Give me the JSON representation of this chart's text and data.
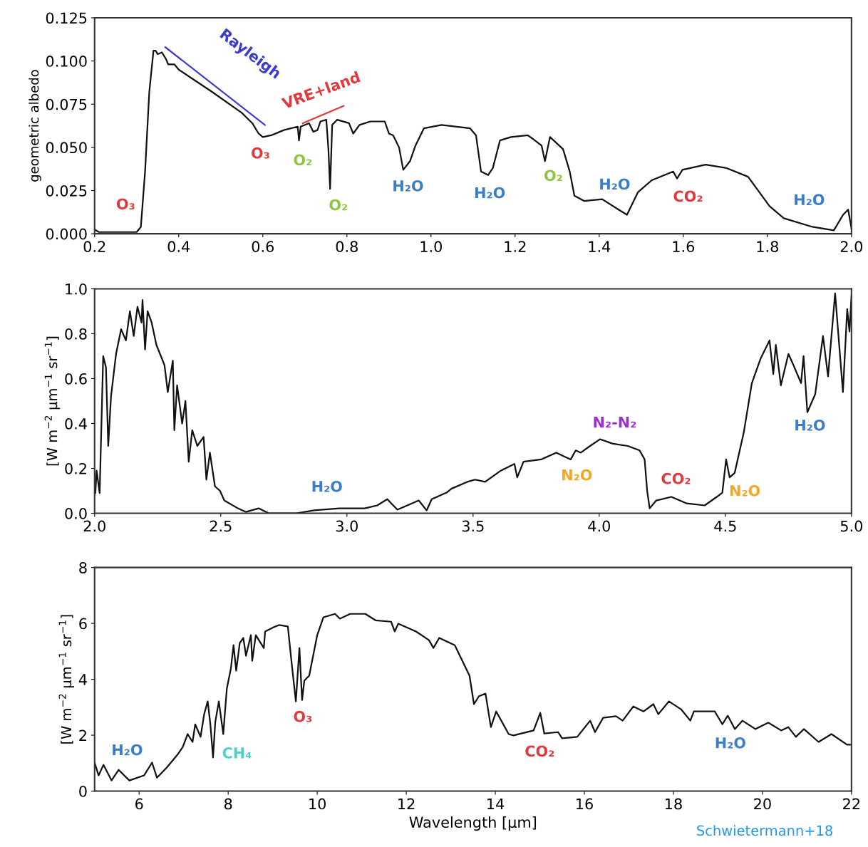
{
  "chart_data": [
    {
      "type": "line",
      "ylabel": "geometric albedo",
      "xlim": [
        0.2,
        2.0
      ],
      "ylim": [
        0.0,
        0.125
      ],
      "xticks": [
        {
          "value": 0.2,
          "label": "0.2"
        },
        {
          "value": 0.4,
          "label": "0.4"
        },
        {
          "value": 0.6,
          "label": "0.6"
        },
        {
          "value": 0.8,
          "label": "0.8"
        },
        {
          "value": 1.0,
          "label": "1.0"
        },
        {
          "value": 1.2,
          "label": "1.2"
        },
        {
          "value": 1.4,
          "label": "1.4"
        },
        {
          "value": 1.6,
          "label": "1.6"
        },
        {
          "value": 1.8,
          "label": "1.8"
        },
        {
          "value": 2.0,
          "label": "2.0"
        }
      ],
      "yticks": [
        {
          "value": 0.0,
          "label": "0.000"
        },
        {
          "value": 0.025,
          "label": "0.025"
        },
        {
          "value": 0.05,
          "label": "0.050"
        },
        {
          "value": 0.075,
          "label": "0.075"
        },
        {
          "value": 0.1,
          "label": "0.100"
        },
        {
          "value": 0.125,
          "label": "0.125"
        }
      ],
      "grid": false,
      "series": [
        {
          "color": "#111111",
          "x": [
            0.2,
            0.21,
            0.23,
            0.3,
            0.31,
            0.32,
            0.33,
            0.34,
            0.345,
            0.35,
            0.36,
            0.37,
            0.375,
            0.39,
            0.4,
            0.48,
            0.55,
            0.575,
            0.59,
            0.6,
            0.62,
            0.65,
            0.683,
            0.686,
            0.69,
            0.71,
            0.72,
            0.73,
            0.737,
            0.751,
            0.756,
            0.76,
            0.765,
            0.777,
            0.805,
            0.815,
            0.83,
            0.856,
            0.89,
            0.9,
            0.91,
            0.924,
            0.934,
            0.95,
            0.963,
            0.983,
            1.025,
            1.093,
            1.107,
            1.119,
            1.136,
            1.147,
            1.164,
            1.19,
            1.23,
            1.242,
            1.263,
            1.271,
            1.283,
            1.314,
            1.33,
            1.341,
            1.364,
            1.407,
            1.446,
            1.466,
            1.492,
            1.525,
            1.576,
            1.585,
            1.598,
            1.653,
            1.703,
            1.754,
            1.805,
            1.839,
            1.907,
            1.958,
            1.98,
            1.992,
            2.0
          ],
          "values": [
            0.0025,
            0.001,
            0.001,
            0.001,
            0.004,
            0.036,
            0.082,
            0.106,
            0.106,
            0.104,
            0.105,
            0.101,
            0.098,
            0.098,
            0.095,
            0.082,
            0.07,
            0.064,
            0.058,
            0.056,
            0.057,
            0.06,
            0.062,
            0.054,
            0.062,
            0.064,
            0.059,
            0.06,
            0.065,
            0.066,
            0.049,
            0.026,
            0.063,
            0.066,
            0.064,
            0.058,
            0.063,
            0.065,
            0.065,
            0.058,
            0.057,
            0.05,
            0.037,
            0.042,
            0.051,
            0.061,
            0.063,
            0.061,
            0.057,
            0.036,
            0.034,
            0.038,
            0.054,
            0.056,
            0.057,
            0.055,
            0.051,
            0.042,
            0.056,
            0.049,
            0.036,
            0.022,
            0.019,
            0.02,
            0.014,
            0.011,
            0.024,
            0.031,
            0.036,
            0.032,
            0.037,
            0.04,
            0.038,
            0.033,
            0.016,
            0.009,
            0.004,
            0.002,
            0.011,
            0.014,
            0.003
          ]
        },
        {
          "color": "#3b3bd0",
          "x": [
            0.368,
            0.605
          ],
          "values": [
            0.108,
            0.063
          ]
        },
        {
          "color": "#e0393e",
          "x": [
            0.695,
            0.792
          ],
          "values": [
            0.064,
            0.074
          ]
        }
      ],
      "annotations": [
        "O₃",
        "Rayleigh",
        "VRE+land",
        "O₃",
        "O₂",
        "O₂",
        "H₂O",
        "H₂O",
        "O₂",
        "H₂O",
        "CO₂",
        "H₂O"
      ]
    },
    {
      "type": "line",
      "ylabel": "[W m$^{−2}$ μm$^{−1}$ sr$^{−1}$]",
      "xlim": [
        2.0,
        5.0
      ],
      "ylim": [
        0.0,
        1.0
      ],
      "xticks": [
        {
          "value": 2.0,
          "label": "2.0"
        },
        {
          "value": 2.5,
          "label": "2.5"
        },
        {
          "value": 3.0,
          "label": "3.0"
        },
        {
          "value": 3.5,
          "label": "3.5"
        },
        {
          "value": 4.0,
          "label": "4.0"
        },
        {
          "value": 4.5,
          "label": "4.5"
        },
        {
          "value": 5.0,
          "label": "5.0"
        }
      ],
      "yticks": [
        {
          "value": 0.0,
          "label": "0.0"
        },
        {
          "value": 0.2,
          "label": "0.2"
        },
        {
          "value": 0.4,
          "label": "0.4"
        },
        {
          "value": 0.6,
          "label": "0.6"
        },
        {
          "value": 0.8,
          "label": "0.8"
        },
        {
          "value": 1.0,
          "label": "1.0"
        }
      ],
      "grid": false,
      "series": [
        {
          "color": "#111111",
          "x": [
            2.003,
            2.008,
            2.02,
            2.034,
            2.045,
            2.054,
            2.065,
            2.085,
            2.105,
            2.124,
            2.14,
            2.155,
            2.17,
            2.186,
            2.19,
            2.2,
            2.21,
            2.226,
            2.245,
            2.277,
            2.29,
            2.31,
            2.316,
            2.327,
            2.347,
            2.36,
            2.373,
            2.387,
            2.407,
            2.432,
            2.443,
            2.457,
            2.477,
            2.497,
            2.514,
            2.568,
            2.6,
            2.65,
            2.69,
            2.8,
            2.87,
            2.97,
            3.07,
            3.12,
            3.16,
            3.2,
            3.285,
            3.316,
            3.336,
            3.395,
            3.415,
            3.477,
            3.508,
            3.548,
            3.61,
            3.664,
            3.675,
            3.7,
            3.77,
            3.83,
            3.867,
            3.887,
            3.907,
            3.927,
            3.964,
            4.003,
            4.054,
            4.113,
            4.16,
            4.18,
            4.19,
            4.2,
            4.226,
            4.286,
            4.347,
            4.418,
            4.466,
            4.488,
            4.503,
            4.517,
            4.537,
            4.573,
            4.605,
            4.64,
            4.675,
            4.69,
            4.7,
            4.72,
            4.75,
            4.77,
            4.8,
            4.81,
            4.825,
            4.856,
            4.887,
            4.907,
            4.935,
            4.966,
            4.983,
            4.992,
            5.0
          ],
          "values": [
            0.09,
            0.19,
            0.09,
            0.7,
            0.65,
            0.3,
            0.52,
            0.71,
            0.82,
            0.77,
            0.9,
            0.79,
            0.92,
            0.85,
            0.95,
            0.73,
            0.9,
            0.85,
            0.75,
            0.66,
            0.54,
            0.68,
            0.37,
            0.57,
            0.4,
            0.5,
            0.23,
            0.37,
            0.3,
            0.34,
            0.15,
            0.27,
            0.12,
            0.1,
            0.057,
            0.022,
            0.006,
            0.022,
            0.0,
            0.0,
            0.013,
            0.022,
            0.022,
            0.035,
            0.063,
            0.016,
            0.057,
            0.013,
            0.063,
            0.092,
            0.11,
            0.14,
            0.15,
            0.14,
            0.19,
            0.22,
            0.16,
            0.23,
            0.24,
            0.27,
            0.25,
            0.24,
            0.28,
            0.27,
            0.3,
            0.33,
            0.31,
            0.3,
            0.28,
            0.24,
            0.1,
            0.022,
            0.057,
            0.073,
            0.044,
            0.035,
            0.073,
            0.092,
            0.24,
            0.16,
            0.18,
            0.36,
            0.58,
            0.69,
            0.77,
            0.62,
            0.75,
            0.57,
            0.71,
            0.66,
            0.58,
            0.7,
            0.45,
            0.53,
            0.79,
            0.61,
            0.98,
            0.54,
            0.91,
            0.81,
            0.97
          ]
        }
      ],
      "annotations": [
        "H₂O",
        "N₂O",
        "N₂-N₂",
        "CO₂",
        "N₂O",
        "H₂O"
      ]
    },
    {
      "type": "line",
      "xlabel": "Wavelength [μm]",
      "ylabel": "[W m$^{−2}$ μm$^{−1}$ sr$^{−1}$]",
      "xlim": [
        5,
        22
      ],
      "ylim": [
        0,
        8
      ],
      "xticks": [
        6,
        8,
        10,
        12,
        14,
        16,
        18,
        20,
        22
      ],
      "yticks": [
        0,
        2,
        4,
        6,
        8
      ],
      "grid": false,
      "series": [
        {
          "color": "#111111",
          "x": [
            5.0,
            5.09,
            5.2,
            5.38,
            5.54,
            5.78,
            6.11,
            6.29,
            6.4,
            6.62,
            6.86,
            6.98,
            7.09,
            7.2,
            7.26,
            7.38,
            7.46,
            7.54,
            7.6,
            7.66,
            7.71,
            7.79,
            7.89,
            7.92,
            7.97,
            8.06,
            8.12,
            8.18,
            8.26,
            8.34,
            8.4,
            8.51,
            8.54,
            8.62,
            8.8,
            8.83,
            9.02,
            9.14,
            9.34,
            9.42,
            9.52,
            9.6,
            9.66,
            9.71,
            9.82,
            10.0,
            10.14,
            10.4,
            10.51,
            10.74,
            11.08,
            11.31,
            11.66,
            11.74,
            11.82,
            12.22,
            12.51,
            12.61,
            12.74,
            13.09,
            13.26,
            13.42,
            13.52,
            13.63,
            13.78,
            13.9,
            14.02,
            14.3,
            14.41,
            14.86,
            15.01,
            15.1,
            15.41,
            15.5,
            15.84,
            16.13,
            16.24,
            16.42,
            16.71,
            16.86,
            17.1,
            17.33,
            17.55,
            17.66,
            17.9,
            18.17,
            18.38,
            18.46,
            18.75,
            18.93,
            19.1,
            19.22,
            19.38,
            19.55,
            19.84,
            20.13,
            20.42,
            20.58,
            20.75,
            20.93,
            21.26,
            21.55,
            21.9,
            22.0
          ],
          "values": [
            1.02,
            0.56,
            0.94,
            0.38,
            0.76,
            0.38,
            0.56,
            1.02,
            0.48,
            0.84,
            1.3,
            1.58,
            2.04,
            1.76,
            2.39,
            1.94,
            2.75,
            3.21,
            2.39,
            1.2,
            2.47,
            3.21,
            2.04,
            2.67,
            3.67,
            4.38,
            5.22,
            4.31,
            5.3,
            5.48,
            4.84,
            5.58,
            4.66,
            5.58,
            5.12,
            5.71,
            5.86,
            5.94,
            5.89,
            4.66,
            3.21,
            5.12,
            3.26,
            3.95,
            4.13,
            5.58,
            6.22,
            6.34,
            6.17,
            6.34,
            6.34,
            6.11,
            6.06,
            5.71,
            5.99,
            5.71,
            5.4,
            5.12,
            5.48,
            5.22,
            4.66,
            4.13,
            3.11,
            3.39,
            3.49,
            2.29,
            2.85,
            2.04,
            1.99,
            2.17,
            2.8,
            2.06,
            2.11,
            1.89,
            1.94,
            2.52,
            2.11,
            2.62,
            2.68,
            2.52,
            3.03,
            2.85,
            3.11,
            2.75,
            3.21,
            2.93,
            2.52,
            2.85,
            2.85,
            2.85,
            2.39,
            2.7,
            2.22,
            2.52,
            2.22,
            2.45,
            2.17,
            2.29,
            1.94,
            2.22,
            1.76,
            2.04,
            1.66,
            1.66
          ]
        }
      ],
      "annotations": [
        "H₂O",
        "CH₄",
        "O₃",
        "CO₂",
        "H₂O",
        "Schwietermann+18"
      ]
    }
  ]
}
